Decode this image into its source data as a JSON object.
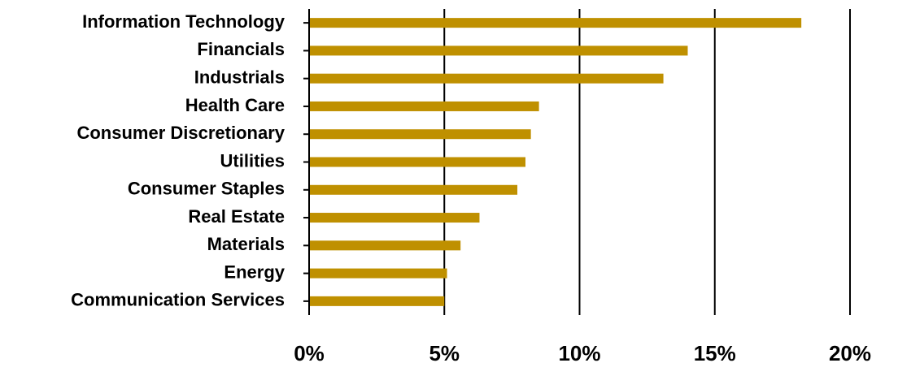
{
  "chart_data": {
    "type": "hbar",
    "categories": [
      "Information Technology",
      "Financials",
      "Industrials",
      "Health Care",
      "Consumer Discretionary",
      "Utilities",
      "Consumer Staples",
      "Real Estate",
      "Materials",
      "Energy",
      "Communication Services"
    ],
    "values": [
      18.2,
      14.0,
      13.1,
      8.5,
      8.2,
      8.0,
      7.7,
      6.3,
      5.6,
      5.1,
      5.0
    ],
    "color": "#bf9000",
    "xlim": [
      0,
      20
    ],
    "xticks": [
      {
        "value": 0,
        "label": "0%"
      },
      {
        "value": 5,
        "label": "5%"
      },
      {
        "value": 10,
        "label": "10%"
      },
      {
        "value": 15,
        "label": "15%"
      },
      {
        "value": 20,
        "label": "20%"
      }
    ],
    "grid": true
  }
}
